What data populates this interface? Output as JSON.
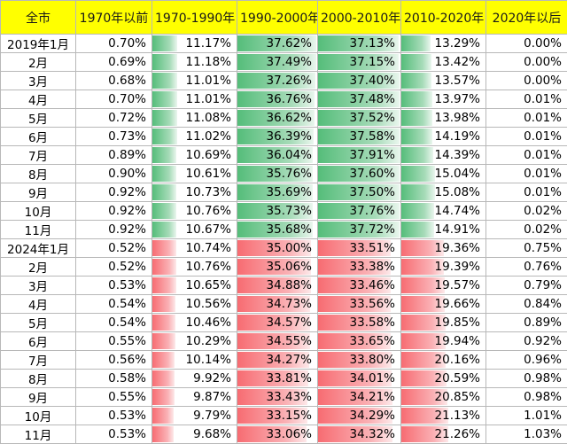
{
  "headers": [
    "全市",
    "1970年以前",
    "1970-1990年",
    "1990-2000年",
    "2000-2010年",
    "2010-2020年",
    "2020年以后"
  ],
  "colors": {
    "header_bg": "#ffff00",
    "green_bar": "#55bd7a",
    "red_bar": "#f76c72"
  },
  "rows": [
    {
      "label": "2019年1月",
      "vals": [
        "0.70%",
        "11.17%",
        "37.62%",
        "37.13%",
        "13.29%",
        "0.00%"
      ],
      "p": [
        0.7,
        11.17,
        37.62,
        37.13,
        13.29,
        0.0
      ]
    },
    {
      "label": "2月",
      "vals": [
        "0.69%",
        "11.18%",
        "37.49%",
        "37.15%",
        "13.42%",
        "0.00%"
      ],
      "p": [
        0.69,
        11.18,
        37.49,
        37.15,
        13.42,
        0.0
      ]
    },
    {
      "label": "3月",
      "vals": [
        "0.68%",
        "11.01%",
        "37.26%",
        "37.40%",
        "13.57%",
        "0.00%"
      ],
      "p": [
        0.68,
        11.01,
        37.26,
        37.4,
        13.57,
        0.0
      ]
    },
    {
      "label": "4月",
      "vals": [
        "0.70%",
        "11.01%",
        "36.76%",
        "37.48%",
        "13.97%",
        "0.01%"
      ],
      "p": [
        0.7,
        11.01,
        36.76,
        37.48,
        13.97,
        0.01
      ]
    },
    {
      "label": "5月",
      "vals": [
        "0.72%",
        "11.08%",
        "36.62%",
        "37.52%",
        "13.98%",
        "0.01%"
      ],
      "p": [
        0.72,
        11.08,
        36.62,
        37.52,
        13.98,
        0.01
      ]
    },
    {
      "label": "6月",
      "vals": [
        "0.73%",
        "11.02%",
        "36.39%",
        "37.58%",
        "14.19%",
        "0.01%"
      ],
      "p": [
        0.73,
        11.02,
        36.39,
        37.58,
        14.19,
        0.01
      ]
    },
    {
      "label": "7月",
      "vals": [
        "0.89%",
        "10.69%",
        "36.04%",
        "37.91%",
        "14.39%",
        "0.01%"
      ],
      "p": [
        0.89,
        10.69,
        36.04,
        37.91,
        14.39,
        0.01
      ]
    },
    {
      "label": "8月",
      "vals": [
        "0.90%",
        "10.61%",
        "35.76%",
        "37.60%",
        "15.04%",
        "0.01%"
      ],
      "p": [
        0.9,
        10.61,
        35.76,
        37.6,
        15.04,
        0.01
      ]
    },
    {
      "label": "9月",
      "vals": [
        "0.92%",
        "10.73%",
        "35.69%",
        "37.50%",
        "15.08%",
        "0.01%"
      ],
      "p": [
        0.92,
        10.73,
        35.69,
        37.5,
        15.08,
        0.01
      ]
    },
    {
      "label": "10月",
      "vals": [
        "0.92%",
        "10.76%",
        "35.73%",
        "37.76%",
        "14.74%",
        "0.02%"
      ],
      "p": [
        0.92,
        10.76,
        35.73,
        37.76,
        14.74,
        0.02
      ]
    },
    {
      "label": "11月",
      "vals": [
        "0.92%",
        "10.67%",
        "35.68%",
        "37.72%",
        "14.91%",
        "0.02%"
      ],
      "p": [
        0.92,
        10.67,
        35.68,
        37.72,
        14.91,
        0.02
      ]
    },
    {
      "label": "2024年1月",
      "vals": [
        "0.52%",
        "10.74%",
        "35.00%",
        "33.51%",
        "19.36%",
        "0.75%"
      ],
      "p": [
        0.52,
        10.74,
        35.0,
        33.51,
        19.36,
        0.75
      ]
    },
    {
      "label": "2月",
      "vals": [
        "0.52%",
        "10.76%",
        "35.06%",
        "33.38%",
        "19.39%",
        "0.76%"
      ],
      "p": [
        0.52,
        10.76,
        35.06,
        33.38,
        19.39,
        0.76
      ]
    },
    {
      "label": "3月",
      "vals": [
        "0.53%",
        "10.65%",
        "34.88%",
        "33.46%",
        "19.57%",
        "0.79%"
      ],
      "p": [
        0.53,
        10.65,
        34.88,
        33.46,
        19.57,
        0.79
      ]
    },
    {
      "label": "4月",
      "vals": [
        "0.54%",
        "10.56%",
        "34.73%",
        "33.56%",
        "19.66%",
        "0.84%"
      ],
      "p": [
        0.54,
        10.56,
        34.73,
        33.56,
        19.66,
        0.84
      ]
    },
    {
      "label": "5月",
      "vals": [
        "0.54%",
        "10.46%",
        "34.57%",
        "33.58%",
        "19.85%",
        "0.89%"
      ],
      "p": [
        0.54,
        10.46,
        34.57,
        33.58,
        19.85,
        0.89
      ]
    },
    {
      "label": "6月",
      "vals": [
        "0.55%",
        "10.29%",
        "34.55%",
        "33.65%",
        "19.94%",
        "0.92%"
      ],
      "p": [
        0.55,
        10.29,
        34.55,
        33.65,
        19.94,
        0.92
      ]
    },
    {
      "label": "7月",
      "vals": [
        "0.56%",
        "10.14%",
        "34.27%",
        "33.80%",
        "20.16%",
        "0.96%"
      ],
      "p": [
        0.56,
        10.14,
        34.27,
        33.8,
        20.16,
        0.96
      ]
    },
    {
      "label": "8月",
      "vals": [
        "0.58%",
        "9.92%",
        "33.81%",
        "34.01%",
        "20.59%",
        "0.98%"
      ],
      "p": [
        0.58,
        9.92,
        33.81,
        34.01,
        20.59,
        0.98
      ]
    },
    {
      "label": "9月",
      "vals": [
        "0.55%",
        "9.87%",
        "33.43%",
        "34.21%",
        "20.85%",
        "0.98%"
      ],
      "p": [
        0.55,
        9.87,
        33.43,
        34.21,
        20.85,
        0.98
      ]
    },
    {
      "label": "10月",
      "vals": [
        "0.53%",
        "9.79%",
        "33.15%",
        "34.29%",
        "21.13%",
        "1.01%"
      ],
      "p": [
        0.53,
        9.79,
        33.15,
        34.29,
        21.13,
        1.01
      ]
    },
    {
      "label": "11月",
      "vals": [
        "0.53%",
        "9.68%",
        "33.06%",
        "34.32%",
        "21.26%",
        "1.03%"
      ],
      "p": [
        0.53,
        9.68,
        33.06,
        34.32,
        21.26,
        1.03
      ]
    }
  ]
}
